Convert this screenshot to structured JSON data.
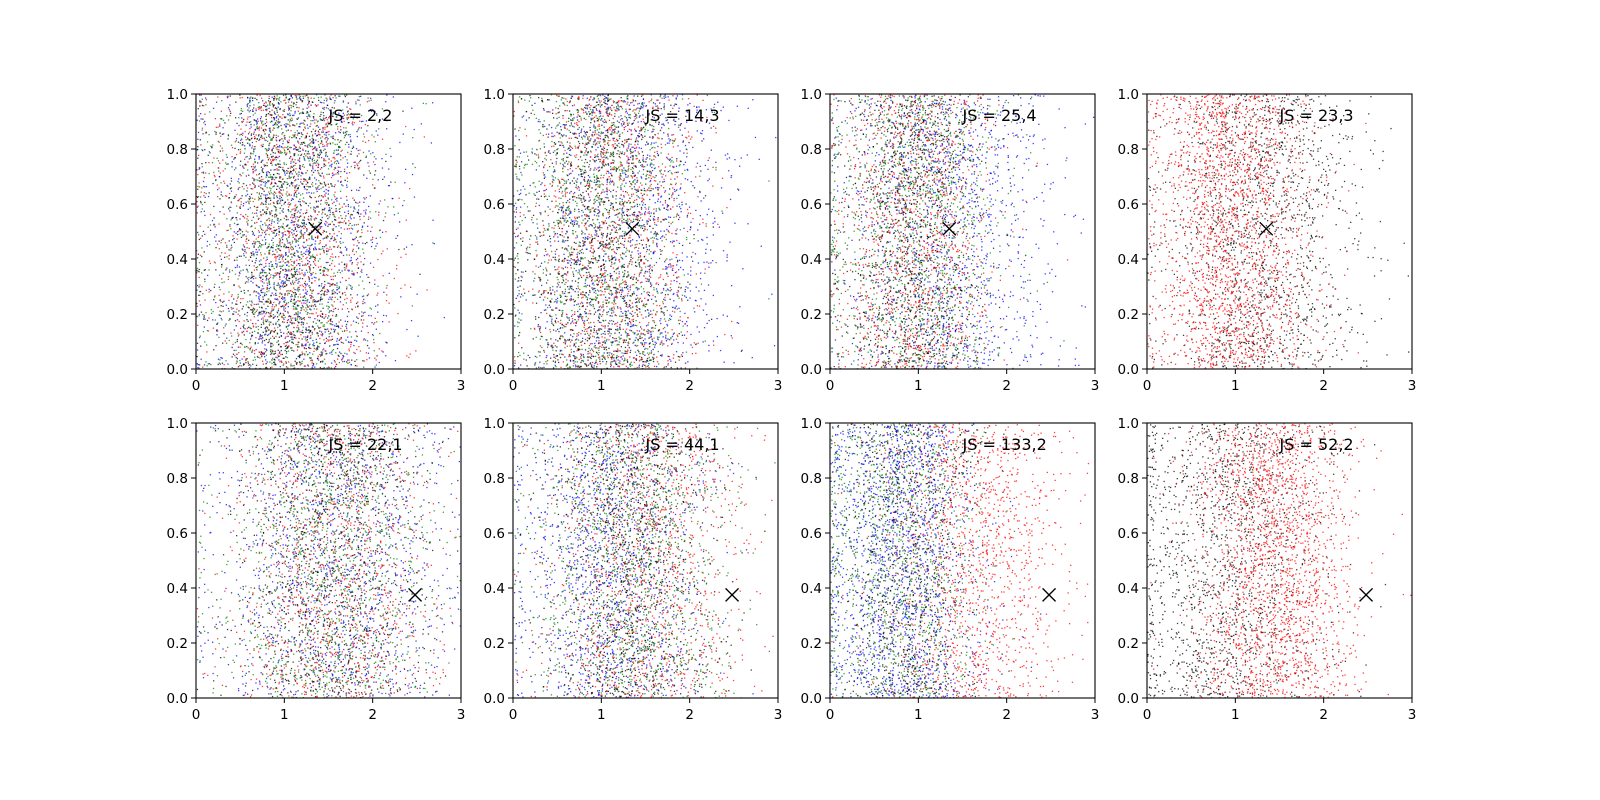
{
  "figure": {
    "background": "#ffffff",
    "axis_color": "#000000",
    "marker_color": "#000000"
  },
  "chart_data": [
    {
      "type": "scatter",
      "title": "",
      "xlabel": "",
      "ylabel": "",
      "xlim": [
        0,
        3
      ],
      "ylim": [
        0,
        1
      ],
      "xticks": [
        "0",
        "1",
        "2",
        "3"
      ],
      "yticks": [
        "0.0",
        "0.2",
        "0.4",
        "0.6",
        "0.8",
        "1.0"
      ],
      "annotation": "JS = 2,2",
      "marker": {
        "x": 1.35,
        "y": 0.51,
        "symbol": "x"
      },
      "series": [
        {
          "color": "#0000ff",
          "count": 1200,
          "x_center": 1.15,
          "x_spread": 0.55
        },
        {
          "color": "#ff0000",
          "count": 1200,
          "x_center": 1.1,
          "x_spread": 0.55
        },
        {
          "color": "#008000",
          "count": 1200,
          "x_center": 1.05,
          "x_spread": 0.5
        },
        {
          "color": "#000000",
          "count": 1200,
          "x_center": 1.0,
          "x_spread": 0.45
        }
      ]
    },
    {
      "type": "scatter",
      "title": "",
      "xlabel": "",
      "ylabel": "",
      "xlim": [
        0,
        3
      ],
      "ylim": [
        0,
        1
      ],
      "xticks": [
        "0",
        "1",
        "2",
        "3"
      ],
      "yticks": [
        "0.0",
        "0.2",
        "0.4",
        "0.6",
        "0.8",
        "1.0"
      ],
      "annotation": "JS = 14,3",
      "marker": {
        "x": 1.35,
        "y": 0.51,
        "symbol": "x"
      },
      "series": [
        {
          "color": "#0000ff",
          "count": 1200,
          "x_center": 1.3,
          "x_spread": 0.6
        },
        {
          "color": "#ff0000",
          "count": 1200,
          "x_center": 1.1,
          "x_spread": 0.5
        },
        {
          "color": "#008000",
          "count": 1200,
          "x_center": 1.0,
          "x_spread": 0.5
        },
        {
          "color": "#000000",
          "count": 1200,
          "x_center": 1.0,
          "x_spread": 0.45
        }
      ]
    },
    {
      "type": "scatter",
      "title": "",
      "xlabel": "",
      "ylabel": "",
      "xlim": [
        0,
        3
      ],
      "ylim": [
        0,
        1
      ],
      "xticks": [
        "0",
        "1",
        "2",
        "3"
      ],
      "yticks": [
        "0.0",
        "0.2",
        "0.4",
        "0.6",
        "0.8",
        "1.0"
      ],
      "annotation": "JS = 25,4",
      "marker": {
        "x": 1.35,
        "y": 0.51,
        "symbol": "x"
      },
      "series": [
        {
          "color": "#0000ff",
          "count": 1200,
          "x_center": 1.35,
          "x_spread": 0.6
        },
        {
          "color": "#ff0000",
          "count": 1200,
          "x_center": 0.95,
          "x_spread": 0.45
        },
        {
          "color": "#008000",
          "count": 1200,
          "x_center": 0.95,
          "x_spread": 0.5
        },
        {
          "color": "#000000",
          "count": 1200,
          "x_center": 0.9,
          "x_spread": 0.4
        }
      ]
    },
    {
      "type": "scatter",
      "title": "",
      "xlabel": "",
      "ylabel": "",
      "xlim": [
        0,
        3
      ],
      "ylim": [
        0,
        1
      ],
      "xticks": [
        "0",
        "1",
        "2",
        "3"
      ],
      "yticks": [
        "0.0",
        "0.2",
        "0.4",
        "0.6",
        "0.8",
        "1.0"
      ],
      "annotation": "JS = 23,3",
      "marker": {
        "x": 1.35,
        "y": 0.51,
        "symbol": "x"
      },
      "series": [
        {
          "color": "#000000",
          "count": 1600,
          "x_center": 1.25,
          "x_spread": 0.55
        },
        {
          "color": "#ff0000",
          "count": 2000,
          "x_center": 0.95,
          "x_spread": 0.45
        }
      ]
    },
    {
      "type": "scatter",
      "title": "",
      "xlabel": "",
      "ylabel": "",
      "xlim": [
        0,
        3
      ],
      "ylim": [
        0,
        1
      ],
      "xticks": [
        "0",
        "1",
        "2",
        "3"
      ],
      "yticks": [
        "0.0",
        "0.2",
        "0.4",
        "0.6",
        "0.8",
        "1.0"
      ],
      "annotation": "JS = 22,1",
      "marker": {
        "x": 2.48,
        "y": 0.375,
        "symbol": "x"
      },
      "series": [
        {
          "color": "#0000ff",
          "count": 1200,
          "x_center": 1.6,
          "x_spread": 0.7
        },
        {
          "color": "#ff0000",
          "count": 1200,
          "x_center": 1.55,
          "x_spread": 0.6
        },
        {
          "color": "#008000",
          "count": 1200,
          "x_center": 1.5,
          "x_spread": 0.6
        },
        {
          "color": "#000000",
          "count": 1200,
          "x_center": 1.5,
          "x_spread": 0.55
        }
      ]
    },
    {
      "type": "scatter",
      "title": "",
      "xlabel": "",
      "ylabel": "",
      "xlim": [
        0,
        3
      ],
      "ylim": [
        0,
        1
      ],
      "xticks": [
        "0",
        "1",
        "2",
        "3"
      ],
      "yticks": [
        "0.0",
        "0.2",
        "0.4",
        "0.6",
        "0.8",
        "1.0"
      ],
      "annotation": "JS = 44,1",
      "marker": {
        "x": 2.48,
        "y": 0.375,
        "symbol": "x"
      },
      "series": [
        {
          "color": "#0000ff",
          "count": 1200,
          "x_center": 1.05,
          "x_spread": 0.55
        },
        {
          "color": "#ff0000",
          "count": 1200,
          "x_center": 1.5,
          "x_spread": 0.55
        },
        {
          "color": "#008000",
          "count": 1200,
          "x_center": 1.35,
          "x_spread": 0.55
        },
        {
          "color": "#000000",
          "count": 1200,
          "x_center": 1.3,
          "x_spread": 0.5
        }
      ]
    },
    {
      "type": "scatter",
      "title": "",
      "xlabel": "",
      "ylabel": "",
      "xlim": [
        0,
        3
      ],
      "ylim": [
        0,
        1
      ],
      "xticks": [
        "0",
        "1",
        "2",
        "3"
      ],
      "yticks": [
        "0.0",
        "0.2",
        "0.4",
        "0.6",
        "0.8",
        "1.0"
      ],
      "annotation": "JS = 133,2",
      "marker": {
        "x": 2.48,
        "y": 0.375,
        "symbol": "x"
      },
      "series": [
        {
          "color": "#ff0000",
          "count": 1400,
          "x_center": 1.6,
          "x_spread": 0.5
        },
        {
          "color": "#008000",
          "count": 1200,
          "x_center": 0.75,
          "x_spread": 0.45
        },
        {
          "color": "#0000ff",
          "count": 1400,
          "x_center": 0.8,
          "x_spread": 0.45
        },
        {
          "color": "#000000",
          "count": 900,
          "x_center": 0.85,
          "x_spread": 0.4
        }
      ]
    },
    {
      "type": "scatter",
      "title": "",
      "xlabel": "",
      "ylabel": "",
      "xlim": [
        0,
        3
      ],
      "ylim": [
        0,
        1
      ],
      "xticks": [
        "0",
        "1",
        "2",
        "3"
      ],
      "yticks": [
        "0.0",
        "0.2",
        "0.4",
        "0.6",
        "0.8",
        "1.0"
      ],
      "annotation": "JS = 52,2",
      "marker": {
        "x": 2.48,
        "y": 0.375,
        "symbol": "x"
      },
      "series": [
        {
          "color": "#000000",
          "count": 1600,
          "x_center": 0.9,
          "x_spread": 0.55
        },
        {
          "color": "#ff0000",
          "count": 2000,
          "x_center": 1.45,
          "x_spread": 0.45
        }
      ]
    }
  ]
}
